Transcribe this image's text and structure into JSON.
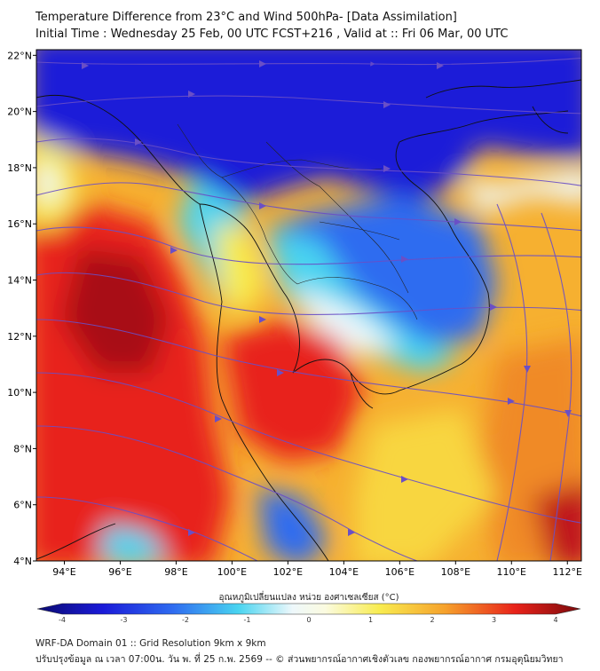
{
  "title_line1": "Temperature Difference from 23°C and Wind 500hPa- [Data Assimilation]",
  "title_line2": "Initial Time : Wednesday 25 Feb, 00 UTC FCST+216 , Valid at ::  Fri 06 Mar, 00 UTC",
  "lat_labels": [
    "22°N",
    "20°N",
    "18°N",
    "16°N",
    "14°N",
    "12°N",
    "10°N",
    "8°N",
    "6°N",
    "4°N"
  ],
  "lat_values": [
    22,
    20,
    18,
    16,
    14,
    12,
    10,
    8,
    6,
    4
  ],
  "lon_labels": [
    "94°E",
    "96°E",
    "98°E",
    "100°E",
    "102°E",
    "104°E",
    "106°E",
    "108°E",
    "110°E",
    "112°E"
  ],
  "lon_values": [
    94,
    96,
    98,
    100,
    102,
    104,
    106,
    108,
    110,
    112
  ],
  "colorbar": {
    "label": "อุณหภูมิเปลี่ยนแปลง หน่วย องศาเซลเซียส (°C)",
    "ticks": [
      "-4",
      "-3",
      "-2",
      "-1",
      "0",
      "1",
      "2",
      "3",
      "4"
    ],
    "min": -4,
    "max": 4
  },
  "colors": {
    "deep_blue": "#1a1ad8",
    "blue": "#2f6cf0",
    "light_blue": "#49d4f0",
    "white": "#eef8fb",
    "yellow": "#f8ec50",
    "orange": "#f6a22c",
    "red": "#e8221a",
    "dark_red": "#a80f12",
    "streamline": "#6a4fc6",
    "border": "#111111"
  },
  "footer_line1": "WRF-DA Domain 01 :: Grid Resolution 9km x 9km",
  "footer_line2": "ปรับปรุงข้อมูล ณ เวลา 07:00น. วัน พ. ที่ 25 ก.พ. 2569 -- © ส่วนพยากรณ์อากาศเชิงตัวเลข กองพยากรณ์อากาศ กรมอุตุนิยมวิทยา"
}
